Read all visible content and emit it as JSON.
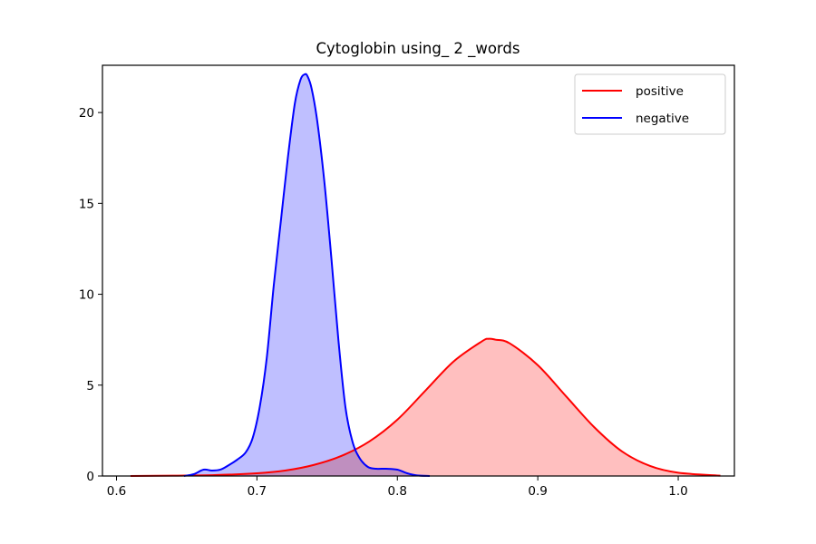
{
  "chart_data": {
    "type": "area",
    "title": "Cytoglobin using_ 2 _words",
    "xlabel": "",
    "ylabel": "",
    "xlim": [
      0.59,
      1.04
    ],
    "ylim": [
      0,
      22.6
    ],
    "xticks": [
      0.6,
      0.7,
      0.8,
      0.9,
      1.0
    ],
    "xtick_labels": [
      "0.6",
      "0.7",
      "0.8",
      "0.9",
      "1.0"
    ],
    "yticks": [
      0,
      5,
      10,
      15,
      20
    ],
    "ytick_labels": [
      "0",
      "5",
      "10",
      "15",
      "20"
    ],
    "grid": false,
    "legend_position": "top-right",
    "series": [
      {
        "name": "positive",
        "color": "#ff0000",
        "fill": "#ffbcbc",
        "x": [
          0.61,
          0.64,
          0.67,
          0.7,
          0.72,
          0.74,
          0.76,
          0.78,
          0.8,
          0.82,
          0.84,
          0.86,
          0.865,
          0.87,
          0.88,
          0.9,
          0.92,
          0.94,
          0.96,
          0.98,
          1.0,
          1.03
        ],
        "y": [
          0.0,
          0.02,
          0.05,
          0.15,
          0.3,
          0.6,
          1.1,
          1.9,
          3.1,
          4.7,
          6.3,
          7.4,
          7.55,
          7.5,
          7.3,
          6.1,
          4.4,
          2.7,
          1.35,
          0.55,
          0.18,
          0.02
        ]
      },
      {
        "name": "negative",
        "color": "#0000ff",
        "fill": "#bcbcff",
        "x": [
          0.648,
          0.655,
          0.662,
          0.668,
          0.674,
          0.68,
          0.686,
          0.692,
          0.697,
          0.702,
          0.707,
          0.712,
          0.717,
          0.722,
          0.727,
          0.731,
          0.734,
          0.736,
          0.739,
          0.743,
          0.748,
          0.753,
          0.758,
          0.763,
          0.768,
          0.773,
          0.779,
          0.785,
          0.792,
          0.8,
          0.807,
          0.814,
          0.823
        ],
        "y": [
          0.0,
          0.1,
          0.35,
          0.3,
          0.35,
          0.6,
          0.9,
          1.3,
          2.1,
          3.8,
          6.5,
          10.5,
          14.0,
          17.5,
          20.5,
          21.8,
          22.1,
          22.0,
          21.3,
          19.5,
          16.2,
          12.0,
          7.5,
          3.8,
          1.9,
          1.0,
          0.5,
          0.4,
          0.4,
          0.35,
          0.15,
          0.03,
          0.0
        ]
      }
    ]
  }
}
